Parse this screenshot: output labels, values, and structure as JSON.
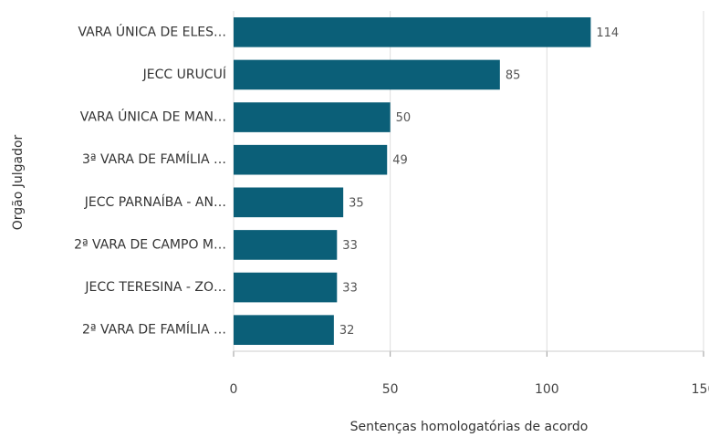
{
  "chart_data": {
    "type": "bar",
    "orientation": "horizontal",
    "x_label": "Sentenças homologatórias de acordo",
    "y_label": "Orgão Julgador",
    "categories": [
      "VARA ÚNICA DE ELES…",
      "JECC URUCUÍ",
      "VARA ÚNICA DE MAN…",
      "3ª VARA DE FAMÍLIA …",
      "JECC PARNAÍBA - AN…",
      "2ª VARA DE CAMPO M…",
      "JECC TERESINA - ZO…",
      "2ª VARA DE FAMÍLIA …"
    ],
    "values": [
      114,
      85,
      50,
      49,
      35,
      33,
      33,
      32
    ],
    "color": "#0b5f78",
    "xlim": [
      0,
      150
    ],
    "xticks": [
      0,
      50,
      100,
      150
    ],
    "grid": true
  }
}
